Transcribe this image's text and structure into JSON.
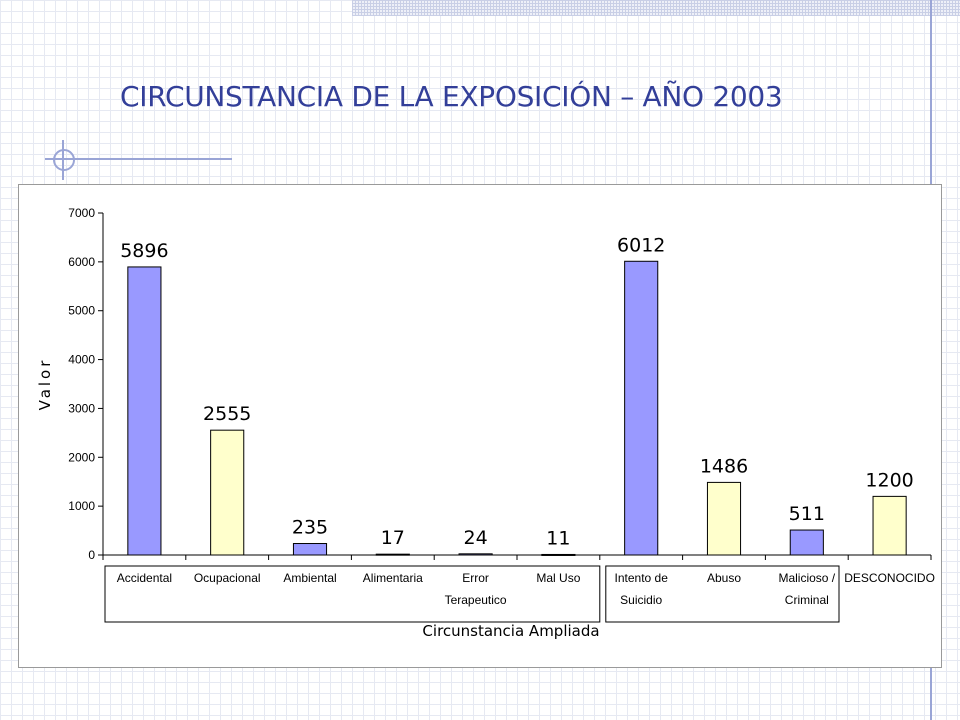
{
  "slide": {
    "title": "CIRCUNSTANCIA DE LA EXPOSICIÓN – AÑO 2003"
  },
  "chart_data": {
    "type": "bar",
    "xlabel": "Circunstancia Ampliada",
    "ylabel": "Valor",
    "ylim": [
      0,
      7000
    ],
    "yticks": [
      0,
      1000,
      2000,
      3000,
      4000,
      5000,
      6000,
      7000
    ],
    "grid": false,
    "categories": [
      {
        "lines": [
          "Accidental"
        ],
        "value": 5896,
        "color": "#9999ff"
      },
      {
        "lines": [
          "Ocupacional"
        ],
        "value": 2555,
        "color": "#ffffcc"
      },
      {
        "lines": [
          "Ambiental"
        ],
        "value": 235,
        "color": "#9999ff"
      },
      {
        "lines": [
          "Alimentaria"
        ],
        "value": 17,
        "color": "#9999ff"
      },
      {
        "lines": [
          "Error",
          "Terapeutico"
        ],
        "value": 24,
        "color": "#9999ff"
      },
      {
        "lines": [
          "Mal Uso"
        ],
        "value": 11,
        "color": "#9999ff"
      },
      {
        "lines": [
          "Intento de",
          "Suicidio"
        ],
        "value": 6012,
        "color": "#9999ff"
      },
      {
        "lines": [
          "Abuso"
        ],
        "value": 1486,
        "color": "#ffffcc"
      },
      {
        "lines": [
          "Malicioso /",
          "Criminal"
        ],
        "value": 511,
        "color": "#9999ff"
      },
      {
        "lines": [
          "DESCONOCIDO"
        ],
        "value": 1200,
        "color": "#ffffcc"
      }
    ]
  }
}
